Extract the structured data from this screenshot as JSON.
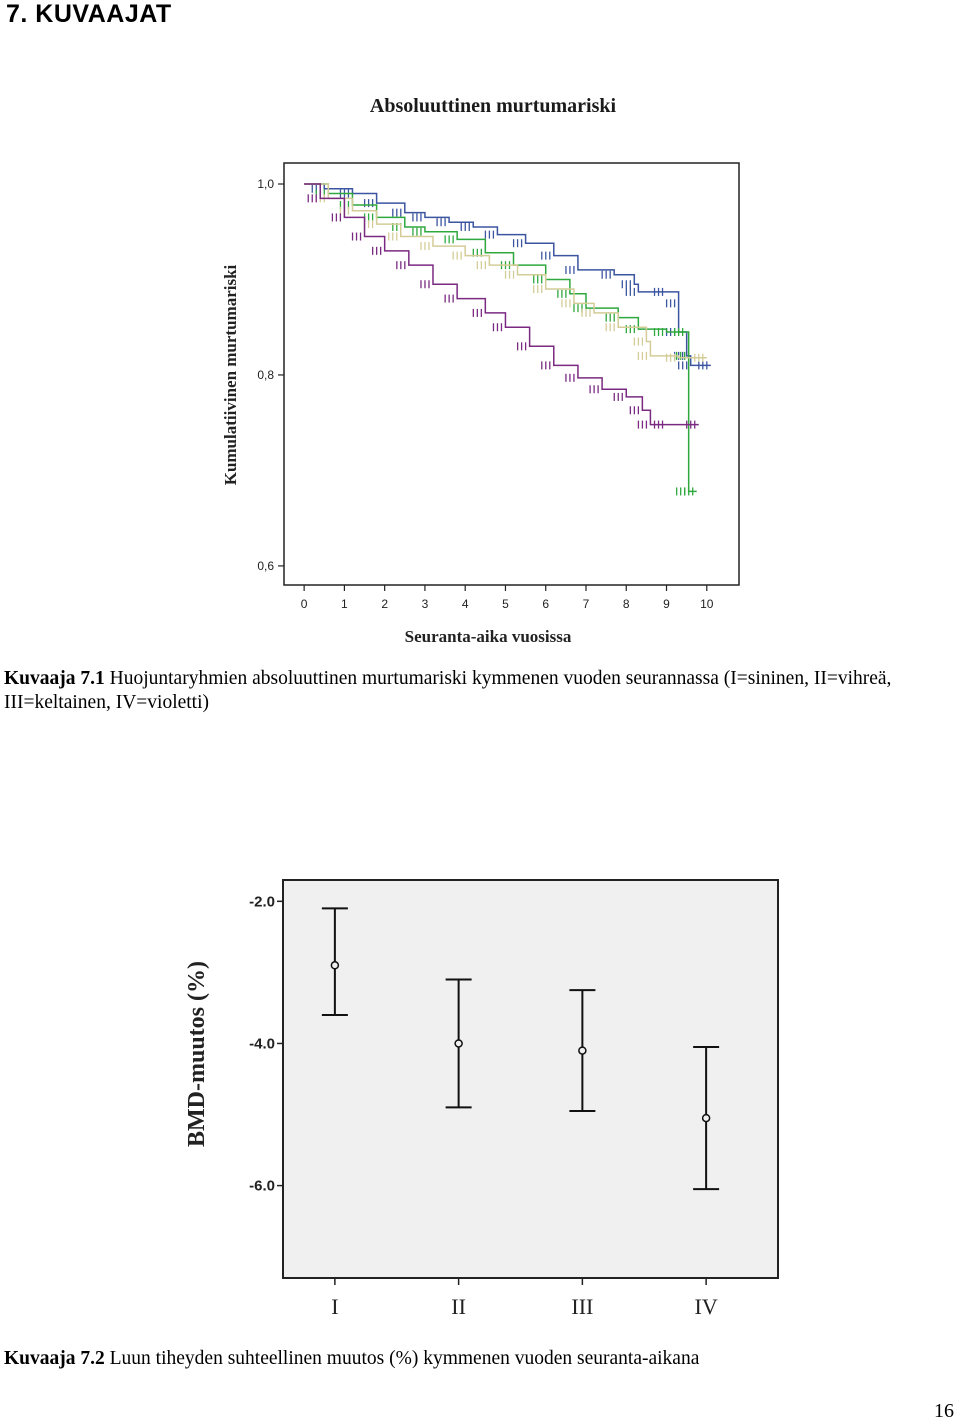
{
  "heading": "7. KUVAAJAT",
  "captions": [
    {
      "label": "Kuvaaja 7.1",
      "text": " Huojuntaryhmien  absoluuttinen murtumariski kymmenen vuoden seurannassa (I=sininen, II=vihreä, III=keltainen, IV=violetti)"
    },
    {
      "label": "Kuvaaja 7.2",
      "text": " Luun tiheyden suhteellinen muutos (%) kymmenen vuoden seuranta-aikana"
    }
  ],
  "page_number": "16",
  "chart_data": [
    {
      "type": "line",
      "title": "Absoluuttinen murtumariski",
      "xlabel": "Seuranta-aika vuosissa",
      "ylabel": "Kumulatiivinen murtumariski",
      "xticks": [
        "0",
        "1",
        "2",
        "3",
        "4",
        "5",
        "6",
        "7",
        "8",
        "9",
        "10"
      ],
      "yticks": [
        {
          "value": 1.0,
          "label": "1,0"
        },
        {
          "value": 0.8,
          "label": "0,8"
        },
        {
          "value": 0.6,
          "label": "0,6"
        }
      ],
      "xlim": [
        -0.5,
        10.8
      ],
      "ylim": [
        0.58,
        1.022
      ],
      "grid": false,
      "series": [
        {
          "color": "#3b55a0",
          "points": [
            [
              0,
              1.0
            ],
            [
              0.5,
              0.995
            ],
            [
              1.2,
              0.99
            ],
            [
              1.8,
              0.98
            ],
            [
              2.5,
              0.97
            ],
            [
              3.0,
              0.965
            ],
            [
              3.6,
              0.96
            ],
            [
              4.2,
              0.955
            ],
            [
              4.8,
              0.947
            ],
            [
              5.5,
              0.938
            ],
            [
              6.2,
              0.925
            ],
            [
              6.8,
              0.91
            ],
            [
              7.7,
              0.905
            ],
            [
              8.2,
              0.895
            ],
            [
              8.3,
              0.887
            ],
            [
              9.0,
              0.887
            ],
            [
              9.3,
              0.875
            ],
            [
              9.3,
              0.845
            ],
            [
              9.5,
              0.82
            ],
            [
              9.6,
              0.81
            ],
            [
              10.1,
              0.81
            ]
          ]
        },
        {
          "color": "#2fa83e",
          "points": [
            [
              0,
              1.0
            ],
            [
              0.6,
              0.99
            ],
            [
              1.2,
              0.978
            ],
            [
              1.8,
              0.965
            ],
            [
              2.5,
              0.955
            ],
            [
              3.0,
              0.95
            ],
            [
              3.8,
              0.942
            ],
            [
              4.5,
              0.928
            ],
            [
              5.2,
              0.915
            ],
            [
              6.0,
              0.9
            ],
            [
              6.6,
              0.885
            ],
            [
              7.0,
              0.87
            ],
            [
              7.8,
              0.86
            ],
            [
              8.3,
              0.848
            ],
            [
              9.0,
              0.845
            ],
            [
              9.5,
              0.845
            ],
            [
              9.55,
              0.82
            ],
            [
              9.55,
              0.678
            ],
            [
              9.75,
              0.678
            ]
          ]
        },
        {
          "color": "#d4cc96",
          "points": [
            [
              0,
              1.0
            ],
            [
              0.6,
              0.985
            ],
            [
              1.2,
              0.972
            ],
            [
              1.8,
              0.958
            ],
            [
              2.4,
              0.945
            ],
            [
              3.2,
              0.935
            ],
            [
              4.0,
              0.925
            ],
            [
              4.6,
              0.915
            ],
            [
              5.3,
              0.905
            ],
            [
              6.0,
              0.89
            ],
            [
              6.7,
              0.875
            ],
            [
              7.2,
              0.865
            ],
            [
              7.8,
              0.85
            ],
            [
              8.5,
              0.835
            ],
            [
              8.6,
              0.82
            ],
            [
              9.3,
              0.818
            ],
            [
              10.0,
              0.818
            ]
          ]
        },
        {
          "color": "#7b2a82",
          "points": [
            [
              0,
              1.0
            ],
            [
              0.4,
              0.985
            ],
            [
              1.0,
              0.965
            ],
            [
              1.5,
              0.945
            ],
            [
              2.0,
              0.93
            ],
            [
              2.6,
              0.915
            ],
            [
              3.2,
              0.895
            ],
            [
              3.8,
              0.88
            ],
            [
              4.5,
              0.865
            ],
            [
              5.0,
              0.85
            ],
            [
              5.6,
              0.83
            ],
            [
              6.2,
              0.81
            ],
            [
              6.8,
              0.797
            ],
            [
              7.4,
              0.785
            ],
            [
              8.0,
              0.777
            ],
            [
              8.4,
              0.763
            ],
            [
              8.6,
              0.748
            ],
            [
              9.0,
              0.748
            ],
            [
              9.8,
              0.748
            ]
          ]
        }
      ]
    },
    {
      "type": "errorbar",
      "ylabel": "BMD-muutos (%)",
      "categories": [
        "I",
        "II",
        "III",
        "IV"
      ],
      "yticks": [
        {
          "value": -2.0,
          "label": "-2.0"
        },
        {
          "value": -4.0,
          "label": "-4.0"
        },
        {
          "value": -6.0,
          "label": "-6.0"
        }
      ],
      "ylim": [
        -7.3,
        -1.7
      ],
      "grid": false,
      "values": [
        -2.9,
        -4.0,
        -4.1,
        -5.05
      ],
      "ci_upper": [
        -2.1,
        -3.1,
        -3.25,
        -4.05
      ],
      "ci_lower": [
        -3.6,
        -4.9,
        -4.95,
        -6.05
      ]
    }
  ]
}
